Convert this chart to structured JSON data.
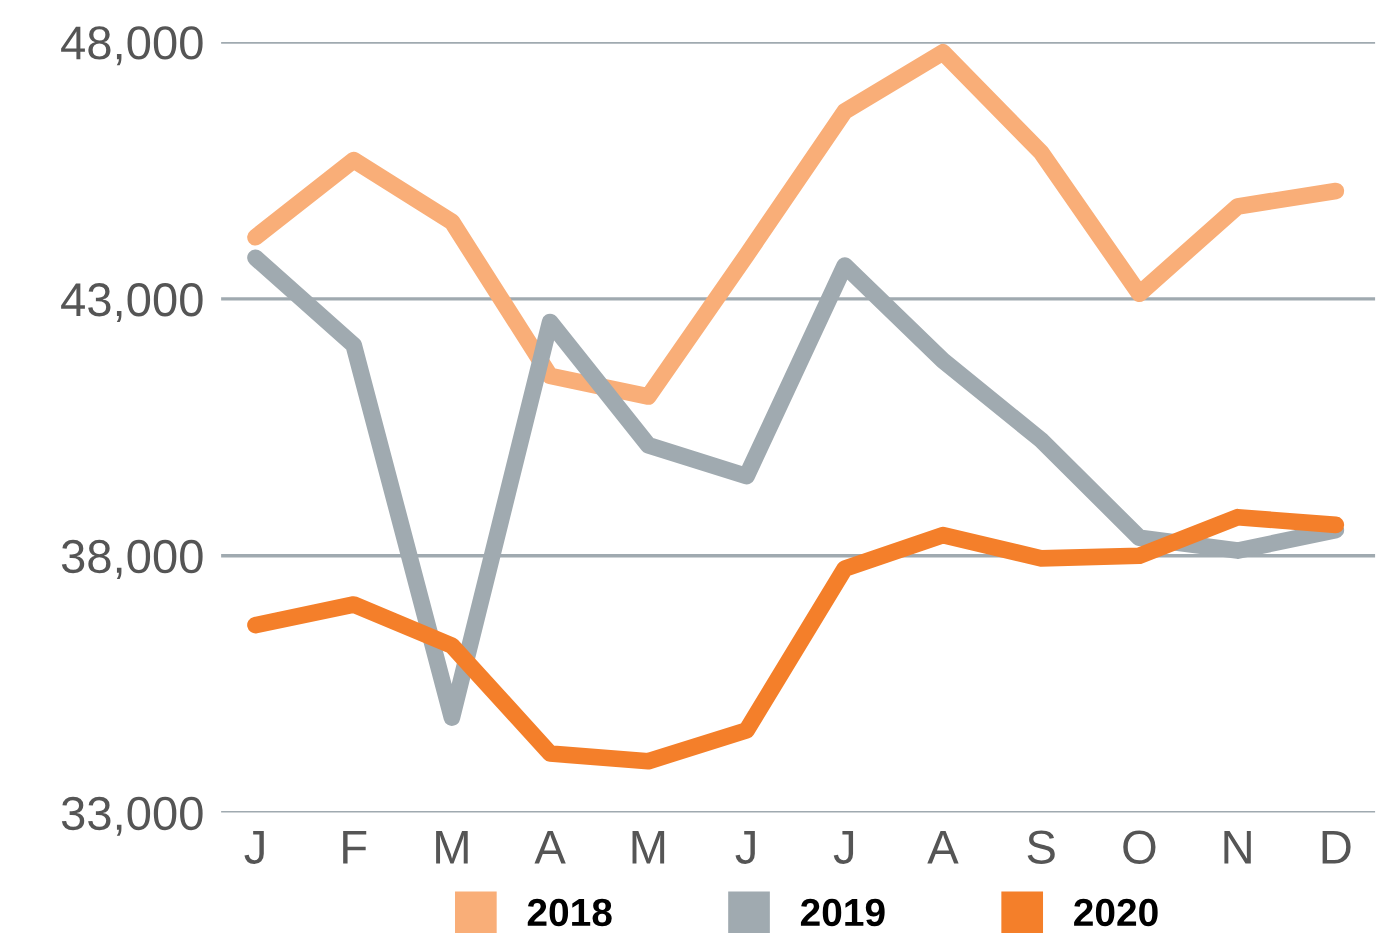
{
  "chart_data": {
    "type": "line",
    "categories": [
      "J",
      "F",
      "M",
      "A",
      "M",
      "J",
      "J",
      "A",
      "S",
      "O",
      "N",
      "D"
    ],
    "series": [
      {
        "name": "2018",
        "color": "#f9ae78",
        "values": [
          44200,
          45700,
          44500,
          41500,
          41100,
          43850,
          46650,
          47800,
          45850,
          43100,
          44800,
          45100
        ]
      },
      {
        "name": "2019",
        "color": "#a0aab0",
        "values": [
          43800,
          42100,
          34850,
          42550,
          40150,
          39550,
          43650,
          41800,
          40250,
          38350,
          38100,
          38500
        ]
      },
      {
        "name": "2020",
        "color": "#f47f2a",
        "values": [
          36650,
          37050,
          36250,
          34150,
          34000,
          34600,
          37750,
          38400,
          37950,
          38000,
          38750,
          38600
        ]
      }
    ],
    "ylim": [
      33000,
      48000
    ],
    "yticks": [
      {
        "value": 33000,
        "label": "33,000"
      },
      {
        "value": 38000,
        "label": "38,000"
      },
      {
        "value": 43000,
        "label": "43,000"
      },
      {
        "value": 48000,
        "label": "48,000"
      }
    ],
    "grid": "y",
    "legend": "bottom",
    "marker": "none",
    "line_style": "solid"
  }
}
